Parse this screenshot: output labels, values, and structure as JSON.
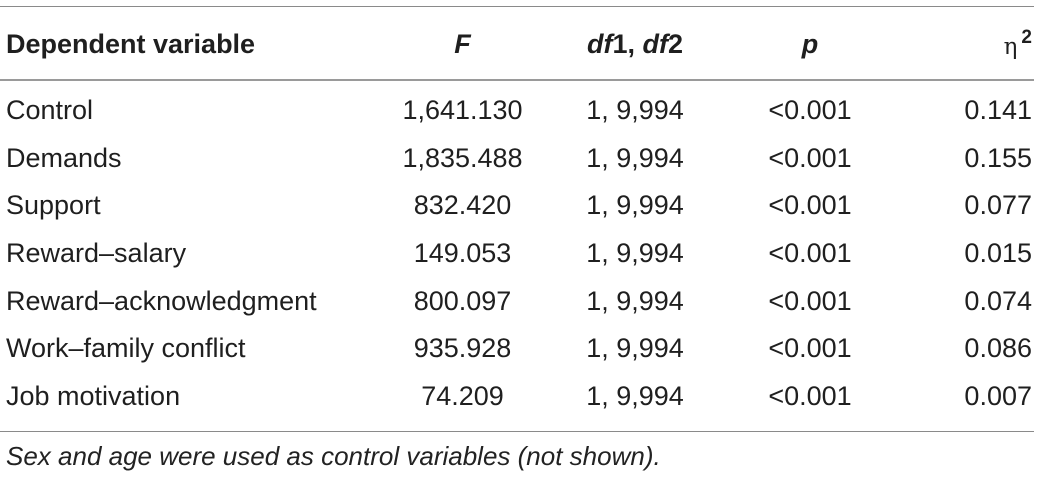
{
  "table": {
    "headers": {
      "dependent": "Dependent variable",
      "f": "F",
      "df_a": "df",
      "df_b": "1, ",
      "df_c": "df",
      "df_d": "2",
      "p": "p",
      "eta": "η",
      "eta_sup": "2"
    },
    "rows": [
      {
        "variable": "Control",
        "f": "1,641.130",
        "df": "1, 9,994",
        "p": "<0.001",
        "eta2": "0.141"
      },
      {
        "variable": "Demands",
        "f": "1,835.488",
        "df": "1, 9,994",
        "p": "<0.001",
        "eta2": "0.155"
      },
      {
        "variable": "Support",
        "f": "832.420",
        "df": "1, 9,994",
        "p": "<0.001",
        "eta2": "0.077"
      },
      {
        "variable": "Reward–salary",
        "f": "149.053",
        "df": "1, 9,994",
        "p": "<0.001",
        "eta2": "0.015"
      },
      {
        "variable": "Reward–acknowledgment",
        "f": "800.097",
        "df": "1, 9,994",
        "p": "<0.001",
        "eta2": "0.074"
      },
      {
        "variable": "Work–family conflict",
        "f": "935.928",
        "df": "1, 9,994",
        "p": "<0.001",
        "eta2": "0.086"
      },
      {
        "variable": "Job motivation",
        "f": "74.209",
        "df": "1, 9,994",
        "p": "<0.001",
        "eta2": "0.007"
      }
    ],
    "footnote": "Sex and age were used as control variables (not shown)."
  }
}
